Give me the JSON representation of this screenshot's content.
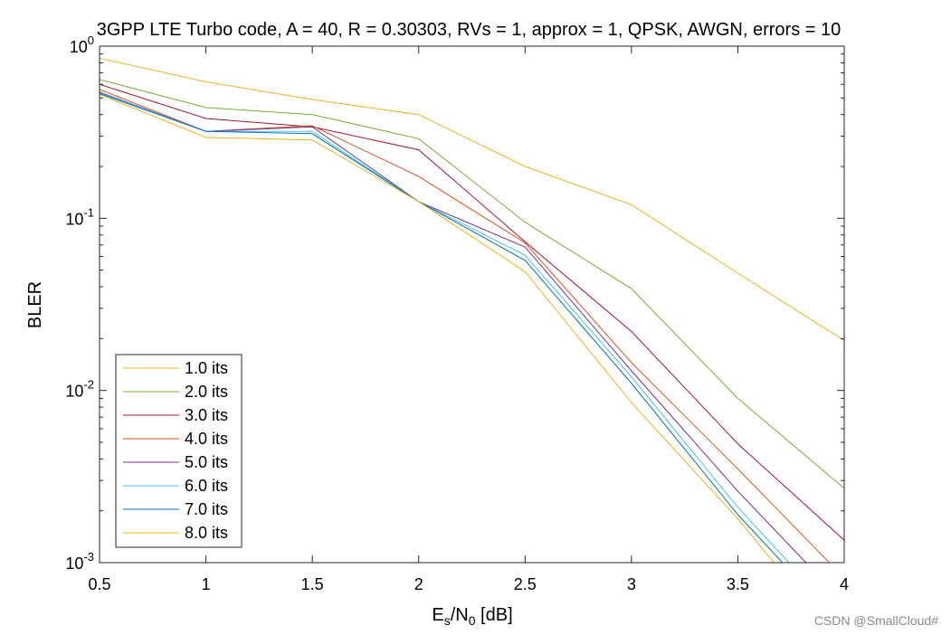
{
  "chart_data": {
    "type": "line",
    "title": "3GPP LTE Turbo code, A = 40, R = 0.30303, RVs = 1, approx = 1, QPSK, AWGN, errors = 10",
    "xlabel": {
      "base": "E",
      "sub1": "s",
      "mid": "/N",
      "sub2": "0",
      "tail": " [dB]"
    },
    "ylabel": "BLER",
    "yscale": "log",
    "xlim": [
      0.5,
      4
    ],
    "ylim": [
      0.001,
      1
    ],
    "x_ticks": [
      0.5,
      1,
      1.5,
      2,
      2.5,
      3,
      3.5,
      4
    ],
    "x_tick_labels": [
      "0.5",
      "1",
      "1.5",
      "2",
      "2.5",
      "3",
      "3.5",
      "4"
    ],
    "y_ticks": [
      {
        "value": 1,
        "base": "10",
        "exp": "0"
      },
      {
        "value": 0.1,
        "base": "10",
        "exp": "-1"
      },
      {
        "value": 0.01,
        "base": "10",
        "exp": "-2"
      },
      {
        "value": 0.001,
        "base": "10",
        "exp": "-3"
      }
    ],
    "legend_position": "bottom-left",
    "series": [
      {
        "name": "1.0 its",
        "color": "#EDB120",
        "x": [
          0.5,
          1,
          1.5,
          2,
          2.5,
          3,
          3.5,
          4
        ],
        "y": [
          0.85,
          0.62,
          0.49,
          0.4,
          0.2,
          0.12,
          0.048,
          0.0195
        ]
      },
      {
        "name": "2.0 its",
        "color": "#77AC30",
        "x": [
          0.5,
          1,
          1.5,
          2,
          2.5,
          3,
          3.5,
          4
        ],
        "y": [
          0.64,
          0.44,
          0.4,
          0.29,
          0.095,
          0.039,
          0.009,
          0.0027
        ]
      },
      {
        "name": "3.0 its",
        "color": "#A2142F",
        "x": [
          0.5,
          1,
          1.5,
          2,
          2.5,
          3,
          3.5,
          4
        ],
        "y": [
          0.6,
          0.38,
          0.34,
          0.25,
          0.073,
          0.022,
          0.0049,
          0.00135
        ]
      },
      {
        "name": "4.0 its",
        "color": "#D95319",
        "x": [
          0.5,
          1,
          1.5,
          2,
          2.5,
          3,
          3.5,
          3.93
        ],
        "y": [
          0.56,
          0.32,
          0.345,
          0.175,
          0.072,
          0.0145,
          0.0035,
          0.001
        ]
      },
      {
        "name": "5.0 its",
        "color": "#7E2F8E",
        "x": [
          0.5,
          1,
          1.5,
          2,
          2.5,
          3,
          3.5,
          3.82
        ],
        "y": [
          0.54,
          0.32,
          0.34,
          0.125,
          0.068,
          0.013,
          0.0026,
          0.001
        ]
      },
      {
        "name": "6.0 its",
        "color": "#4DBEEE",
        "x": [
          0.5,
          1,
          1.5,
          2,
          2.5,
          3,
          3.5,
          3.74
        ],
        "y": [
          0.535,
          0.32,
          0.32,
          0.125,
          0.061,
          0.012,
          0.0021,
          0.001
        ]
      },
      {
        "name": "7.0 its",
        "color": "#0072BD",
        "x": [
          0.5,
          1,
          1.5,
          2,
          2.5,
          3,
          3.5,
          3.71
        ],
        "y": [
          0.53,
          0.32,
          0.31,
          0.125,
          0.057,
          0.011,
          0.0019,
          0.001
        ]
      },
      {
        "name": "8.0 its",
        "color": "#EDB120",
        "x": [
          0.5,
          1,
          1.5,
          2,
          2.5,
          3,
          3.5,
          3.67
        ],
        "y": [
          0.525,
          0.295,
          0.285,
          0.125,
          0.049,
          0.0085,
          0.0018,
          0.001
        ]
      }
    ]
  },
  "watermark": "CSDN @SmallCloud#"
}
